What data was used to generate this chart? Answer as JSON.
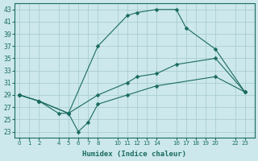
{
  "xlabel": "Humidex (Indice chaleur)",
  "bg_color": "#cce8ec",
  "grid_color": "#aacdd4",
  "line_color": "#1a6b60",
  "ylim": [
    22,
    44
  ],
  "xlim": [
    -0.5,
    24
  ],
  "yticks": [
    23,
    25,
    27,
    29,
    31,
    33,
    35,
    37,
    39,
    41,
    43
  ],
  "xticks": [
    0,
    1,
    2,
    4,
    5,
    6,
    7,
    8,
    10,
    11,
    12,
    13,
    14,
    16,
    17,
    18,
    19,
    20,
    22,
    23
  ],
  "xtick_labels": [
    "0",
    "1",
    "2",
    "4",
    "5",
    "6",
    "7",
    "8",
    "10",
    "11",
    "12",
    "13",
    "14",
    "16",
    "17",
    "18",
    "19",
    "20",
    "22",
    "23"
  ],
  "series_max": {
    "x": [
      0,
      2,
      5,
      8,
      11,
      12,
      14,
      16,
      17,
      20,
      23
    ],
    "y": [
      29,
      28,
      26,
      37,
      42,
      42.5,
      43,
      43,
      40,
      36.5,
      29.5
    ]
  },
  "series_mean": {
    "x": [
      0,
      2,
      5,
      8,
      11,
      12,
      14,
      16,
      20,
      23
    ],
    "y": [
      29,
      28,
      26,
      29,
      31,
      32,
      32.5,
      34,
      35,
      29.5
    ]
  },
  "series_min": {
    "x": [
      0,
      2,
      4,
      5,
      6,
      7,
      8,
      11,
      14,
      20,
      23
    ],
    "y": [
      29,
      28,
      26,
      26,
      23,
      24.5,
      27.5,
      29,
      30.5,
      32,
      29.5
    ]
  }
}
